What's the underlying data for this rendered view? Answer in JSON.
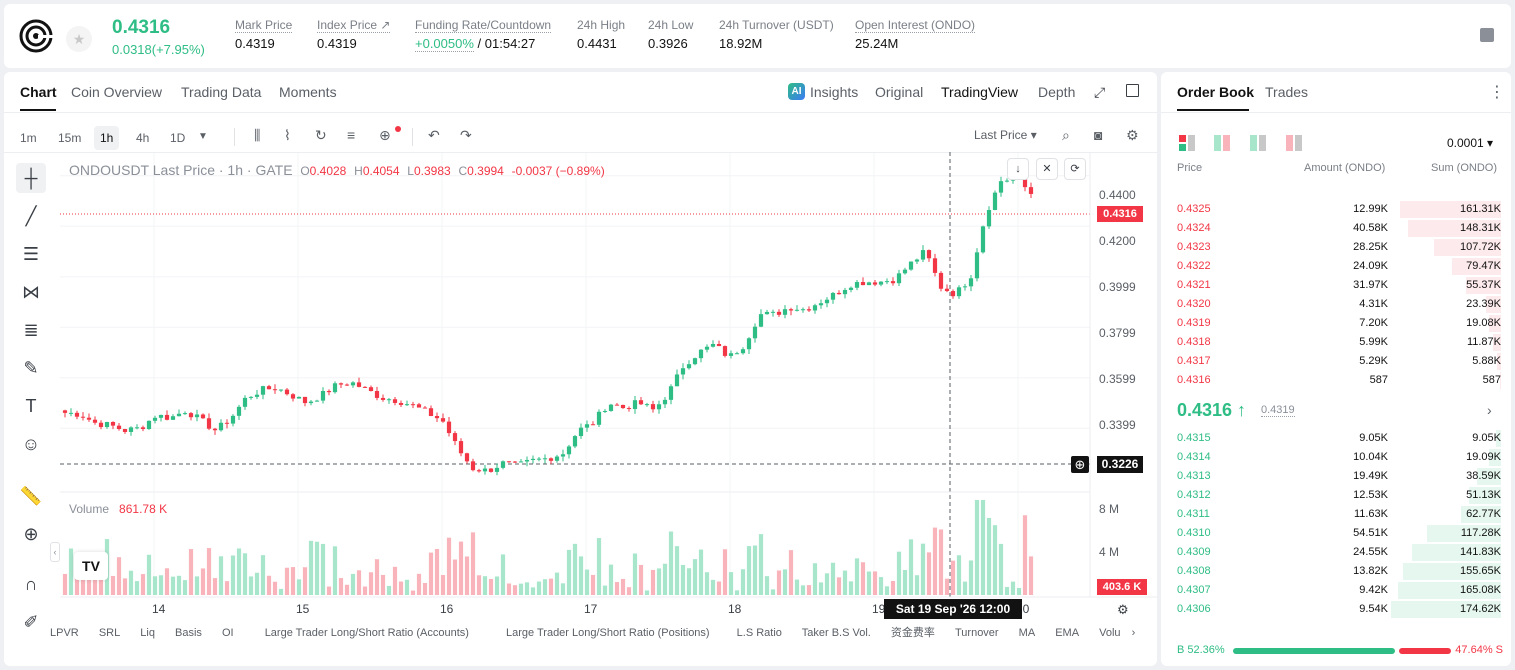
{
  "header": {
    "price": "0.4316",
    "change": "0.0318(+7.95%)",
    "stats": [
      {
        "label": "Mark Price",
        "value": "0.4319"
      },
      {
        "label": "Index Price ↗",
        "value": "0.4319"
      },
      {
        "label": "Funding Rate/Countdown",
        "value": "+0.0050%",
        "value2": "/ 01:54:27"
      },
      {
        "label": "24h High",
        "value": "0.4431"
      },
      {
        "label": "24h Low",
        "value": "0.3926"
      },
      {
        "label": "24h Turnover (USDT)",
        "value": "18.92M"
      },
      {
        "label": "Open Interest (ONDO)",
        "value": "25.24M"
      }
    ]
  },
  "chart_panel": {
    "tabs": [
      "Chart",
      "Coin Overview",
      "Trading Data",
      "Moments"
    ],
    "right_tabs": [
      "Insights",
      "Original",
      "TradingView",
      "Depth"
    ],
    "timeframes": [
      "1m",
      "15m",
      "1h",
      "4h",
      "1D"
    ],
    "active_timeframe": "1h",
    "price_type": "Last Price ▾",
    "legend": {
      "symbol": "ONDOUSDT Last Price · 1h · GATE",
      "o": "O",
      "ov": "0.4028",
      "h": "H",
      "hv": "0.4054",
      "l": "L",
      "lv": "0.3983",
      "c": "C",
      "cv": "0.3994",
      "chg": "-0.0037 (−0.89%)"
    },
    "volume_label": "Volume",
    "volume_value": "861.78 K",
    "last_price_tag": "0.4316",
    "crosshair_price": "0.3226",
    "crosshair_volume": "403.6 K",
    "crosshair_time": "Sat 19 Sep '26   12:00",
    "price_ticks": [
      "0.4400",
      "0.4200",
      "0.3999",
      "0.3799",
      "0.3599",
      "0.3399"
    ],
    "volume_ticks": [
      "8 M",
      "4 M"
    ],
    "date_ticks": [
      "14",
      "15",
      "16",
      "17",
      "18",
      "19",
      "20"
    ],
    "indicators": [
      "LPVR",
      "SRL",
      "Liq",
      "Basis",
      "OI",
      "Large Trader Long/Short Ratio (Accounts)",
      "Large Trader Long/Short Ratio (Positions)",
      "L.S Ratio",
      "Taker B.S Vol.",
      "资金费率",
      "Turnover",
      "MA",
      "EMA",
      "Volu"
    ]
  },
  "chart_data": {
    "type": "candlestick",
    "title": "ONDOUSDT Last Price · 1h · GATE",
    "ylim": [
      0.315,
      0.449
    ],
    "x": [
      "14",
      "15",
      "16",
      "17",
      "18",
      "19",
      "20"
    ],
    "anchor_closes": [
      0.346,
      0.3455,
      0.342,
      0.341,
      0.339,
      0.34,
      0.345,
      0.344,
      0.347,
      0.343,
      0.339,
      0.344,
      0.352,
      0.355,
      0.356,
      0.353,
      0.35,
      0.353,
      0.357,
      0.358,
      0.355,
      0.352,
      0.351,
      0.349,
      0.346,
      0.343,
      0.332,
      0.324,
      0.323,
      0.326,
      0.325,
      0.327,
      0.328,
      0.33,
      0.339,
      0.342,
      0.35,
      0.348,
      0.35,
      0.347,
      0.354,
      0.365,
      0.37,
      0.373,
      0.368,
      0.373,
      0.385,
      0.385,
      0.388,
      0.387,
      0.39,
      0.393,
      0.397,
      0.398,
      0.398,
      0.399,
      0.405,
      0.41,
      0.396,
      0.393,
      0.4,
      0.425,
      0.438,
      0.439,
      0.433
    ],
    "volume_ylim": [
      0,
      9
    ]
  },
  "order_book": {
    "tabs": [
      "Order Book",
      "Trades"
    ],
    "precision": "0.0001 ▾",
    "col_price": "Price",
    "col_amount": "Amount (ONDO)",
    "col_sum": "Sum (ONDO)",
    "asks": [
      {
        "price": "0.4325",
        "amount": "12.99K",
        "sum": "161.31K",
        "depth": 0.92
      },
      {
        "price": "0.4324",
        "amount": "40.58K",
        "sum": "148.31K",
        "depth": 0.85
      },
      {
        "price": "0.4323",
        "amount": "28.25K",
        "sum": "107.72K",
        "depth": 0.61
      },
      {
        "price": "0.4322",
        "amount": "24.09K",
        "sum": "79.47K",
        "depth": 0.45
      },
      {
        "price": "0.4321",
        "amount": "31.97K",
        "sum": "55.37K",
        "depth": 0.32
      },
      {
        "price": "0.4320",
        "amount": "4.31K",
        "sum": "23.39K",
        "depth": 0.14
      },
      {
        "price": "0.4319",
        "amount": "7.20K",
        "sum": "19.08K",
        "depth": 0.11
      },
      {
        "price": "0.4318",
        "amount": "5.99K",
        "sum": "11.87K",
        "depth": 0.07
      },
      {
        "price": "0.4317",
        "amount": "5.29K",
        "sum": "5.88K",
        "depth": 0.04
      },
      {
        "price": "0.4316",
        "amount": "587",
        "sum": "587",
        "depth": 0.01
      }
    ],
    "mid_price": "0.4316 ↑",
    "mid_mark": "0.4319",
    "bids": [
      {
        "price": "0.4315",
        "amount": "9.05K",
        "sum": "9.05K",
        "depth": 0.05
      },
      {
        "price": "0.4314",
        "amount": "10.04K",
        "sum": "19.09K",
        "depth": 0.11
      },
      {
        "price": "0.4313",
        "amount": "19.49K",
        "sum": "38.59K",
        "depth": 0.22
      },
      {
        "price": "0.4312",
        "amount": "12.53K",
        "sum": "51.13K",
        "depth": 0.29
      },
      {
        "price": "0.4311",
        "amount": "11.63K",
        "sum": "62.77K",
        "depth": 0.36
      },
      {
        "price": "0.4310",
        "amount": "54.51K",
        "sum": "117.28K",
        "depth": 0.67
      },
      {
        "price": "0.4309",
        "amount": "24.55K",
        "sum": "141.83K",
        "depth": 0.81
      },
      {
        "price": "0.4308",
        "amount": "13.82K",
        "sum": "155.65K",
        "depth": 0.89
      },
      {
        "price": "0.4307",
        "amount": "9.42K",
        "sum": "165.08K",
        "depth": 0.94
      },
      {
        "price": "0.4306",
        "amount": "9.54K",
        "sum": "174.62K",
        "depth": 1.0
      }
    ],
    "buy_ratio": "B 52.36%",
    "sell_ratio": "47.64% S"
  },
  "colors": {
    "up": "#2ebd85",
    "down": "#f23645"
  }
}
